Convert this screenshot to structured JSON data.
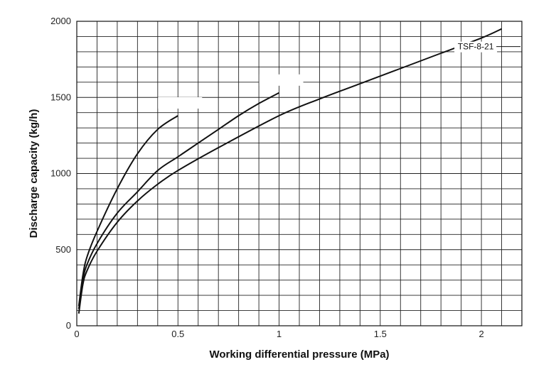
{
  "chart_data": {
    "type": "line",
    "title": "",
    "xlabel": "Working differential pressure (MPa)",
    "ylabel": "Discharge capacity (kg/h)",
    "xlim": [
      0,
      2.2
    ],
    "ylim": [
      0,
      2000
    ],
    "x_ticks": [
      0,
      0.5,
      1,
      1.5,
      2
    ],
    "x_tick_labels": [
      "0",
      "0.5",
      "1",
      "1.5",
      "2"
    ],
    "y_ticks": [
      0,
      500,
      1000,
      1500,
      2000
    ],
    "y_tick_labels": [
      "0",
      "500",
      "1000",
      "1500",
      "2000"
    ],
    "grid": true,
    "grid_x_step": 0.1,
    "grid_y_step": 100,
    "series": [
      {
        "name": "",
        "points": [
          [
            0.01,
            130
          ],
          [
            0.03,
            330
          ],
          [
            0.05,
            450
          ],
          [
            0.1,
            620
          ],
          [
            0.2,
            900
          ],
          [
            0.3,
            1130
          ],
          [
            0.4,
            1290
          ],
          [
            0.5,
            1380
          ]
        ]
      },
      {
        "name": "",
        "points": [
          [
            0.01,
            110
          ],
          [
            0.03,
            300
          ],
          [
            0.05,
            400
          ],
          [
            0.1,
            540
          ],
          [
            0.2,
            740
          ],
          [
            0.3,
            880
          ],
          [
            0.4,
            1020
          ],
          [
            0.5,
            1110
          ],
          [
            0.6,
            1200
          ],
          [
            0.7,
            1290
          ],
          [
            0.8,
            1380
          ],
          [
            0.9,
            1460
          ],
          [
            1.0,
            1530
          ]
        ]
      },
      {
        "name": "TSF-8-21",
        "points": [
          [
            0.01,
            80
          ],
          [
            0.03,
            270
          ],
          [
            0.05,
            360
          ],
          [
            0.1,
            490
          ],
          [
            0.2,
            680
          ],
          [
            0.3,
            820
          ],
          [
            0.4,
            930
          ],
          [
            0.5,
            1020
          ],
          [
            0.7,
            1170
          ],
          [
            1.0,
            1380
          ],
          [
            1.2,
            1490
          ],
          [
            1.4,
            1590
          ],
          [
            1.6,
            1690
          ],
          [
            1.8,
            1790
          ],
          [
            2.0,
            1890
          ],
          [
            2.1,
            1950
          ]
        ]
      }
    ]
  }
}
